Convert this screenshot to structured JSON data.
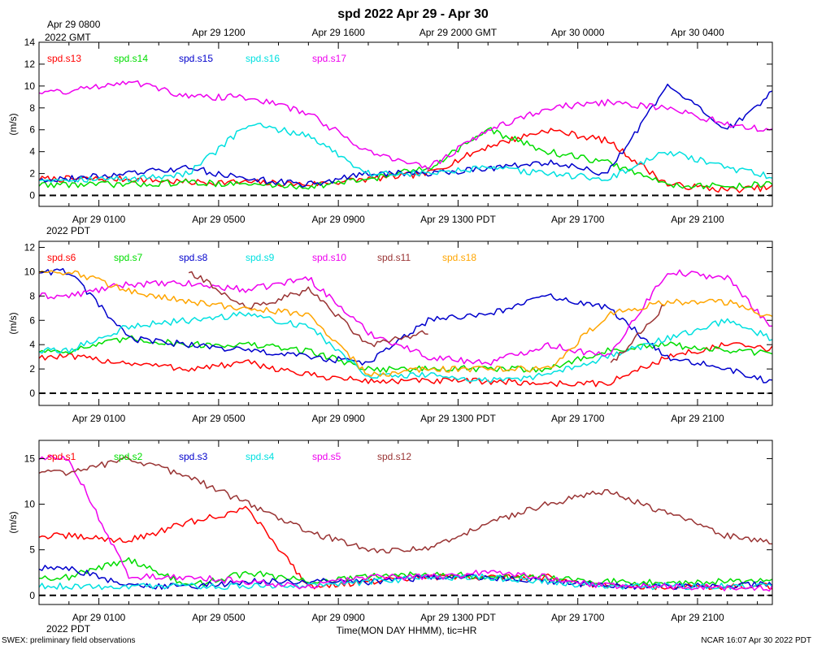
{
  "figure": {
    "title": "spd 2022 Apr 29 - Apr 30",
    "gmt_axis_labels": [
      "Apr 29 0800",
      "Apr 29 1200",
      "Apr 29 1600",
      "Apr 29 2000 GMT",
      "Apr 30 0000",
      "Apr 30 0400"
    ],
    "gmt_year_label": "2022 GMT",
    "pdt_axis_labels": [
      "Apr 29 0100",
      "Apr 29 0500",
      "Apr 29 0900",
      "Apr 29 1300 PDT",
      "Apr 29 1700",
      "Apr 29 2100"
    ],
    "pdt_year_label": "2022 PDT",
    "xlabel": "Time(MON DAY HHMM), tic=HR",
    "footer_left": "SWEX: preliminary field observations",
    "footer_right": "NCAR 16:07 Apr 30 2022 PDT",
    "ylabel": "(m/s)"
  },
  "chart_data": [
    {
      "type": "line",
      "panel": "top",
      "ylabel": "(m/s)",
      "ylim": [
        -1,
        14
      ],
      "yticks": [
        0,
        2,
        4,
        6,
        8,
        10,
        12,
        14
      ],
      "x_hours_pdt": [
        0,
        2,
        4,
        6,
        8,
        10,
        12,
        14,
        16,
        18,
        20,
        22,
        24
      ],
      "xlim_hours_pdt": [
        -1,
        23.5
      ],
      "series": [
        {
          "name": "spd.s13",
          "color": "#ff0000",
          "values": [
            1.5,
            1.5,
            1.2,
            1.2,
            1.0,
            1.5,
            2.0,
            4.5,
            6.0,
            5.0,
            1.0,
            0.5,
            0.8
          ]
        },
        {
          "name": "spd.s14",
          "color": "#00dd00",
          "values": [
            1.0,
            1.0,
            1.2,
            1.0,
            0.8,
            1.5,
            2.5,
            6.0,
            4.0,
            3.0,
            1.0,
            0.8,
            1.2
          ]
        },
        {
          "name": "spd.s15",
          "color": "#0000cc",
          "values": [
            1.5,
            2.0,
            2.5,
            1.5,
            1.0,
            2.0,
            2.0,
            2.5,
            3.0,
            2.0,
            10.0,
            6.0,
            10.5
          ]
        },
        {
          "name": "spd.s16",
          "color": "#00e0e0",
          "values": [
            1.5,
            1.5,
            2.0,
            6.5,
            5.5,
            2.0,
            2.0,
            2.5,
            2.0,
            1.5,
            4.0,
            2.5,
            1.5
          ]
        },
        {
          "name": "spd.s17",
          "color": "#ee00ee",
          "values": [
            9.5,
            10.5,
            9.0,
            9.0,
            7.5,
            4.0,
            2.5,
            6.0,
            8.0,
            8.5,
            8.0,
            6.5,
            5.8
          ]
        }
      ]
    },
    {
      "type": "line",
      "panel": "middle",
      "ylabel": "(m/s)",
      "ylim": [
        -1,
        12.5
      ],
      "yticks": [
        0,
        2,
        4,
        6,
        8,
        10,
        12
      ],
      "x_hours_pdt": [
        0,
        2,
        4,
        6,
        8,
        10,
        12,
        14,
        16,
        18,
        20,
        22,
        24
      ],
      "xlim_hours_pdt": [
        -1,
        23.5
      ],
      "series": [
        {
          "name": "spd.s6",
          "color": "#ff0000",
          "values": [
            3.0,
            2.5,
            2.0,
            2.5,
            1.5,
            1.0,
            1.0,
            1.0,
            0.8,
            0.8,
            3.0,
            4.0,
            3.5
          ]
        },
        {
          "name": "spd.s7",
          "color": "#00dd00",
          "values": [
            3.5,
            4.5,
            4.0,
            4.0,
            3.5,
            2.0,
            2.0,
            2.0,
            2.0,
            3.5,
            4.0,
            3.5,
            3.2
          ]
        },
        {
          "name": "spd.s8",
          "color": "#0000cc",
          "values": [
            10.0,
            4.5,
            4.0,
            3.5,
            3.0,
            2.5,
            6.0,
            6.5,
            8.0,
            7.0,
            3.0,
            2.0,
            0.5
          ]
        },
        {
          "name": "spd.s9",
          "color": "#00e0e0",
          "values": [
            3.5,
            5.5,
            6.0,
            6.5,
            5.5,
            1.5,
            1.5,
            1.0,
            1.5,
            3.0,
            4.5,
            6.0,
            4.0
          ]
        },
        {
          "name": "spd.s10",
          "color": "#ee00ee",
          "values": [
            8.0,
            9.0,
            9.0,
            8.5,
            9.5,
            5.0,
            3.0,
            2.5,
            4.0,
            3.0,
            10.0,
            9.5,
            4.0
          ]
        },
        {
          "name": "spd.s11",
          "color": "#993333",
          "values": [
            null,
            null,
            10.0,
            7.0,
            8.5,
            4.0,
            5.0,
            null,
            null,
            2.0,
            7.5,
            null,
            null
          ]
        },
        {
          "name": "spd.s18",
          "color": "#ffa500",
          "values": [
            10.0,
            8.5,
            7.5,
            7.0,
            6.5,
            1.5,
            2.0,
            2.0,
            2.0,
            6.5,
            7.5,
            7.5,
            5.8
          ]
        }
      ]
    },
    {
      "type": "line",
      "panel": "bottom",
      "ylabel": "(m/s)",
      "ylim": [
        -1,
        17
      ],
      "yticks": [
        0,
        5,
        10,
        15
      ],
      "x_hours_pdt": [
        0,
        2,
        4,
        6,
        8,
        10,
        12,
        14,
        16,
        18,
        20,
        22,
        24
      ],
      "xlim_hours_pdt": [
        -1,
        23.5
      ],
      "series": [
        {
          "name": "spd.s1",
          "color": "#ff0000",
          "values": [
            6.5,
            6.0,
            8.0,
            9.5,
            1.0,
            1.5,
            2.0,
            2.0,
            2.0,
            1.0,
            1.0,
            1.0,
            1.0
          ]
        },
        {
          "name": "spd.s2",
          "color": "#00dd00",
          "values": [
            2.0,
            4.0,
            1.0,
            2.5,
            1.5,
            2.0,
            2.5,
            2.0,
            2.0,
            1.5,
            1.5,
            1.5,
            1.8
          ]
        },
        {
          "name": "spd.s3",
          "color": "#0000cc",
          "values": [
            3.0,
            1.0,
            1.0,
            1.5,
            1.5,
            1.5,
            2.0,
            2.0,
            1.5,
            1.0,
            1.0,
            1.0,
            1.5
          ]
        },
        {
          "name": "spd.s4",
          "color": "#00e0e0",
          "values": [
            1.0,
            1.0,
            1.0,
            1.0,
            1.0,
            1.5,
            2.0,
            2.0,
            1.5,
            1.0,
            1.0,
            1.0,
            1.0
          ]
        },
        {
          "name": "spd.s5",
          "color": "#ee00ee",
          "values": [
            15.0,
            2.0,
            2.0,
            1.5,
            1.0,
            2.0,
            2.0,
            2.5,
            2.0,
            1.0,
            1.0,
            0.8,
            0.8
          ]
        },
        {
          "name": "spd.s12",
          "color": "#993333",
          "values": [
            13.5,
            15.0,
            13.0,
            10.0,
            7.0,
            5.0,
            5.0,
            8.0,
            10.0,
            11.5,
            9.0,
            6.5,
            5.5
          ]
        }
      ]
    }
  ]
}
